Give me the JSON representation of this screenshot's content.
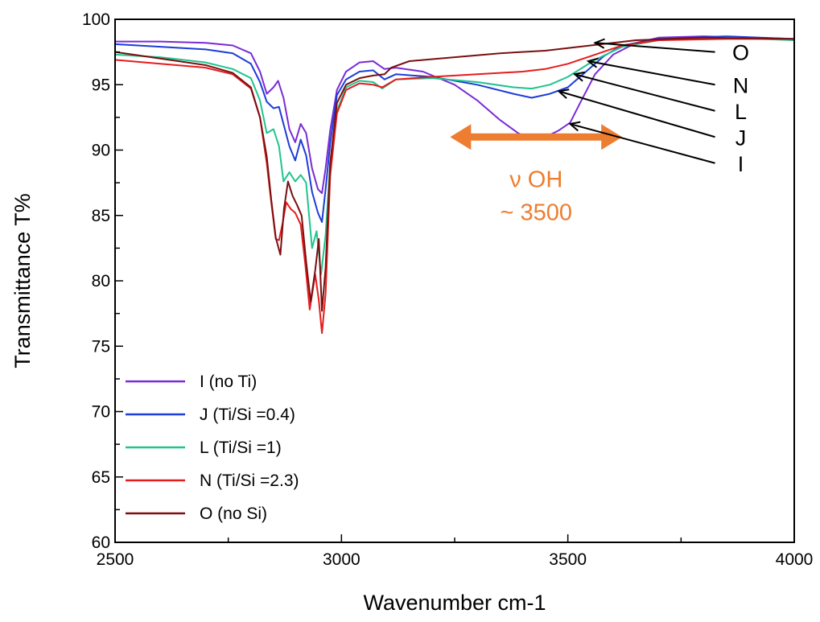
{
  "chart_data": {
    "type": "line",
    "xlabel": "Wavenumber cm-1",
    "ylabel": "Transmittance T%",
    "xlim": [
      2500,
      4000
    ],
    "ylim": [
      60,
      100
    ],
    "x_ticks": [
      2500,
      3000,
      3500,
      4000
    ],
    "y_ticks": [
      60,
      65,
      70,
      75,
      80,
      85,
      90,
      95,
      100
    ],
    "legend_position": "bottom-left",
    "grid": false,
    "series": [
      {
        "name": "I (no Ti)",
        "color": "#7a2bd6",
        "points": [
          [
            2500,
            98.3
          ],
          [
            2600,
            98.3
          ],
          [
            2700,
            98.2
          ],
          [
            2760,
            98.0
          ],
          [
            2800,
            97.4
          ],
          [
            2820,
            96.0
          ],
          [
            2835,
            94.3
          ],
          [
            2850,
            94.8
          ],
          [
            2860,
            95.3
          ],
          [
            2872,
            94.0
          ],
          [
            2885,
            91.6
          ],
          [
            2898,
            90.6
          ],
          [
            2910,
            92.0
          ],
          [
            2922,
            91.3
          ],
          [
            2935,
            88.6
          ],
          [
            2948,
            87.0
          ],
          [
            2957,
            86.7
          ],
          [
            2965,
            88.6
          ],
          [
            2975,
            91.5
          ],
          [
            2990,
            94.6
          ],
          [
            3010,
            96.0
          ],
          [
            3040,
            96.7
          ],
          [
            3070,
            96.8
          ],
          [
            3095,
            96.2
          ],
          [
            3120,
            96.3
          ],
          [
            3180,
            96.0
          ],
          [
            3250,
            95.0
          ],
          [
            3300,
            93.8
          ],
          [
            3350,
            92.3
          ],
          [
            3390,
            91.3
          ],
          [
            3420,
            90.8
          ],
          [
            3450,
            91.0
          ],
          [
            3480,
            91.5
          ],
          [
            3505,
            92.1
          ],
          [
            3530,
            93.8
          ],
          [
            3560,
            95.8
          ],
          [
            3600,
            97.3
          ],
          [
            3650,
            98.2
          ],
          [
            3700,
            98.6
          ],
          [
            3800,
            98.7
          ],
          [
            3900,
            98.6
          ],
          [
            4000,
            98.5
          ]
        ]
      },
      {
        "name": "J (Ti/Si =0.4)",
        "color": "#1c3dd6",
        "points": [
          [
            2500,
            98.1
          ],
          [
            2600,
            97.9
          ],
          [
            2700,
            97.7
          ],
          [
            2760,
            97.4
          ],
          [
            2800,
            96.6
          ],
          [
            2820,
            95.2
          ],
          [
            2835,
            93.7
          ],
          [
            2850,
            93.2
          ],
          [
            2862,
            93.3
          ],
          [
            2872,
            92.0
          ],
          [
            2885,
            90.3
          ],
          [
            2898,
            89.2
          ],
          [
            2910,
            90.8
          ],
          [
            2922,
            89.6
          ],
          [
            2935,
            86.8
          ],
          [
            2948,
            85.2
          ],
          [
            2957,
            84.5
          ],
          [
            2965,
            87.0
          ],
          [
            2975,
            90.5
          ],
          [
            2990,
            94.2
          ],
          [
            3010,
            95.4
          ],
          [
            3040,
            96.0
          ],
          [
            3070,
            96.1
          ],
          [
            3095,
            95.4
          ],
          [
            3120,
            95.8
          ],
          [
            3200,
            95.6
          ],
          [
            3300,
            95.0
          ],
          [
            3380,
            94.3
          ],
          [
            3420,
            94.0
          ],
          [
            3460,
            94.3
          ],
          [
            3500,
            94.8
          ],
          [
            3540,
            96.0
          ],
          [
            3580,
            97.2
          ],
          [
            3620,
            98.0
          ],
          [
            3700,
            98.5
          ],
          [
            3850,
            98.7
          ],
          [
            4000,
            98.5
          ]
        ]
      },
      {
        "name": "L (Ti/Si =1)",
        "color": "#1fc48f",
        "points": [
          [
            2500,
            97.3
          ],
          [
            2600,
            97.1
          ],
          [
            2700,
            96.7
          ],
          [
            2760,
            96.2
          ],
          [
            2800,
            95.5
          ],
          [
            2820,
            93.8
          ],
          [
            2835,
            91.3
          ],
          [
            2850,
            91.6
          ],
          [
            2862,
            90.3
          ],
          [
            2872,
            87.6
          ],
          [
            2885,
            88.3
          ],
          [
            2898,
            87.6
          ],
          [
            2910,
            88.1
          ],
          [
            2922,
            87.5
          ],
          [
            2935,
            82.5
          ],
          [
            2945,
            83.8
          ],
          [
            2955,
            80.5
          ],
          [
            2965,
            83.5
          ],
          [
            2975,
            89.0
          ],
          [
            2990,
            93.0
          ],
          [
            3010,
            94.8
          ],
          [
            3040,
            95.3
          ],
          [
            3070,
            95.2
          ],
          [
            3090,
            94.7
          ],
          [
            3120,
            95.4
          ],
          [
            3200,
            95.5
          ],
          [
            3300,
            95.2
          ],
          [
            3380,
            94.8
          ],
          [
            3420,
            94.7
          ],
          [
            3460,
            95.0
          ],
          [
            3500,
            95.6
          ],
          [
            3560,
            96.9
          ],
          [
            3620,
            97.9
          ],
          [
            3700,
            98.4
          ],
          [
            3850,
            98.6
          ],
          [
            4000,
            98.4
          ]
        ]
      },
      {
        "name": "N (Ti/Si =2.3)",
        "color": "#e51c1c",
        "points": [
          [
            2500,
            96.9
          ],
          [
            2600,
            96.6
          ],
          [
            2700,
            96.3
          ],
          [
            2760,
            95.8
          ],
          [
            2800,
            94.7
          ],
          [
            2820,
            92.5
          ],
          [
            2835,
            89.0
          ],
          [
            2845,
            86.0
          ],
          [
            2855,
            83.2
          ],
          [
            2862,
            83.1
          ],
          [
            2870,
            84.4
          ],
          [
            2878,
            86.0
          ],
          [
            2888,
            85.5
          ],
          [
            2898,
            85.2
          ],
          [
            2910,
            84.3
          ],
          [
            2920,
            81.3
          ],
          [
            2930,
            77.8
          ],
          [
            2942,
            80.5
          ],
          [
            2950,
            78.5
          ],
          [
            2957,
            76.0
          ],
          [
            2965,
            79.0
          ],
          [
            2975,
            88.0
          ],
          [
            2990,
            92.8
          ],
          [
            3010,
            94.6
          ],
          [
            3040,
            95.1
          ],
          [
            3070,
            95.0
          ],
          [
            3090,
            94.8
          ],
          [
            3120,
            95.4
          ],
          [
            3200,
            95.6
          ],
          [
            3300,
            95.8
          ],
          [
            3400,
            96.0
          ],
          [
            3450,
            96.2
          ],
          [
            3500,
            96.6
          ],
          [
            3560,
            97.3
          ],
          [
            3620,
            98.0
          ],
          [
            3700,
            98.4
          ],
          [
            3850,
            98.5
          ],
          [
            4000,
            98.5
          ]
        ]
      },
      {
        "name": "O (no Si)",
        "color": "#7a0f0f",
        "points": [
          [
            2500,
            97.5
          ],
          [
            2600,
            97.0
          ],
          [
            2700,
            96.5
          ],
          [
            2760,
            95.9
          ],
          [
            2800,
            94.8
          ],
          [
            2820,
            92.5
          ],
          [
            2835,
            89.5
          ],
          [
            2845,
            86.2
          ],
          [
            2855,
            83.3
          ],
          [
            2865,
            82.0
          ],
          [
            2873,
            85.5
          ],
          [
            2882,
            87.6
          ],
          [
            2892,
            86.5
          ],
          [
            2902,
            85.8
          ],
          [
            2912,
            85.0
          ],
          [
            2922,
            81.5
          ],
          [
            2932,
            78.4
          ],
          [
            2942,
            80.8
          ],
          [
            2950,
            83.2
          ],
          [
            2957,
            77.7
          ],
          [
            2965,
            81.0
          ],
          [
            2975,
            89.0
          ],
          [
            2990,
            93.6
          ],
          [
            3010,
            95.0
          ],
          [
            3040,
            95.5
          ],
          [
            3070,
            95.7
          ],
          [
            3095,
            95.8
          ],
          [
            3110,
            96.3
          ],
          [
            3150,
            96.8
          ],
          [
            3250,
            97.1
          ],
          [
            3350,
            97.4
          ],
          [
            3450,
            97.6
          ],
          [
            3550,
            98.0
          ],
          [
            3650,
            98.4
          ],
          [
            3800,
            98.6
          ],
          [
            4000,
            98.5
          ]
        ]
      }
    ],
    "annotations": {
      "oh_line1": "ν OH",
      "oh_line2": "~ 3500",
      "oh_color": "#ed7d31",
      "oh_arrow_from": 3240,
      "oh_arrow_to": 3620,
      "oh_arrow_y": 91.0,
      "curve_labels": [
        {
          "text": "O",
          "x": 3560,
          "y": 98.2,
          "label_x": 3825,
          "label_y": 97.5
        },
        {
          "text": "N",
          "x": 3545,
          "y": 96.8,
          "label_x": 3825,
          "label_y": 95.0
        },
        {
          "text": "L",
          "x": 3515,
          "y": 95.8,
          "label_x": 3825,
          "label_y": 93.0
        },
        {
          "text": "J",
          "x": 3480,
          "y": 94.5,
          "label_x": 3825,
          "label_y": 91.0
        },
        {
          "text": "I",
          "x": 3505,
          "y": 92.0,
          "label_x": 3825,
          "label_y": 89.0
        }
      ]
    }
  }
}
